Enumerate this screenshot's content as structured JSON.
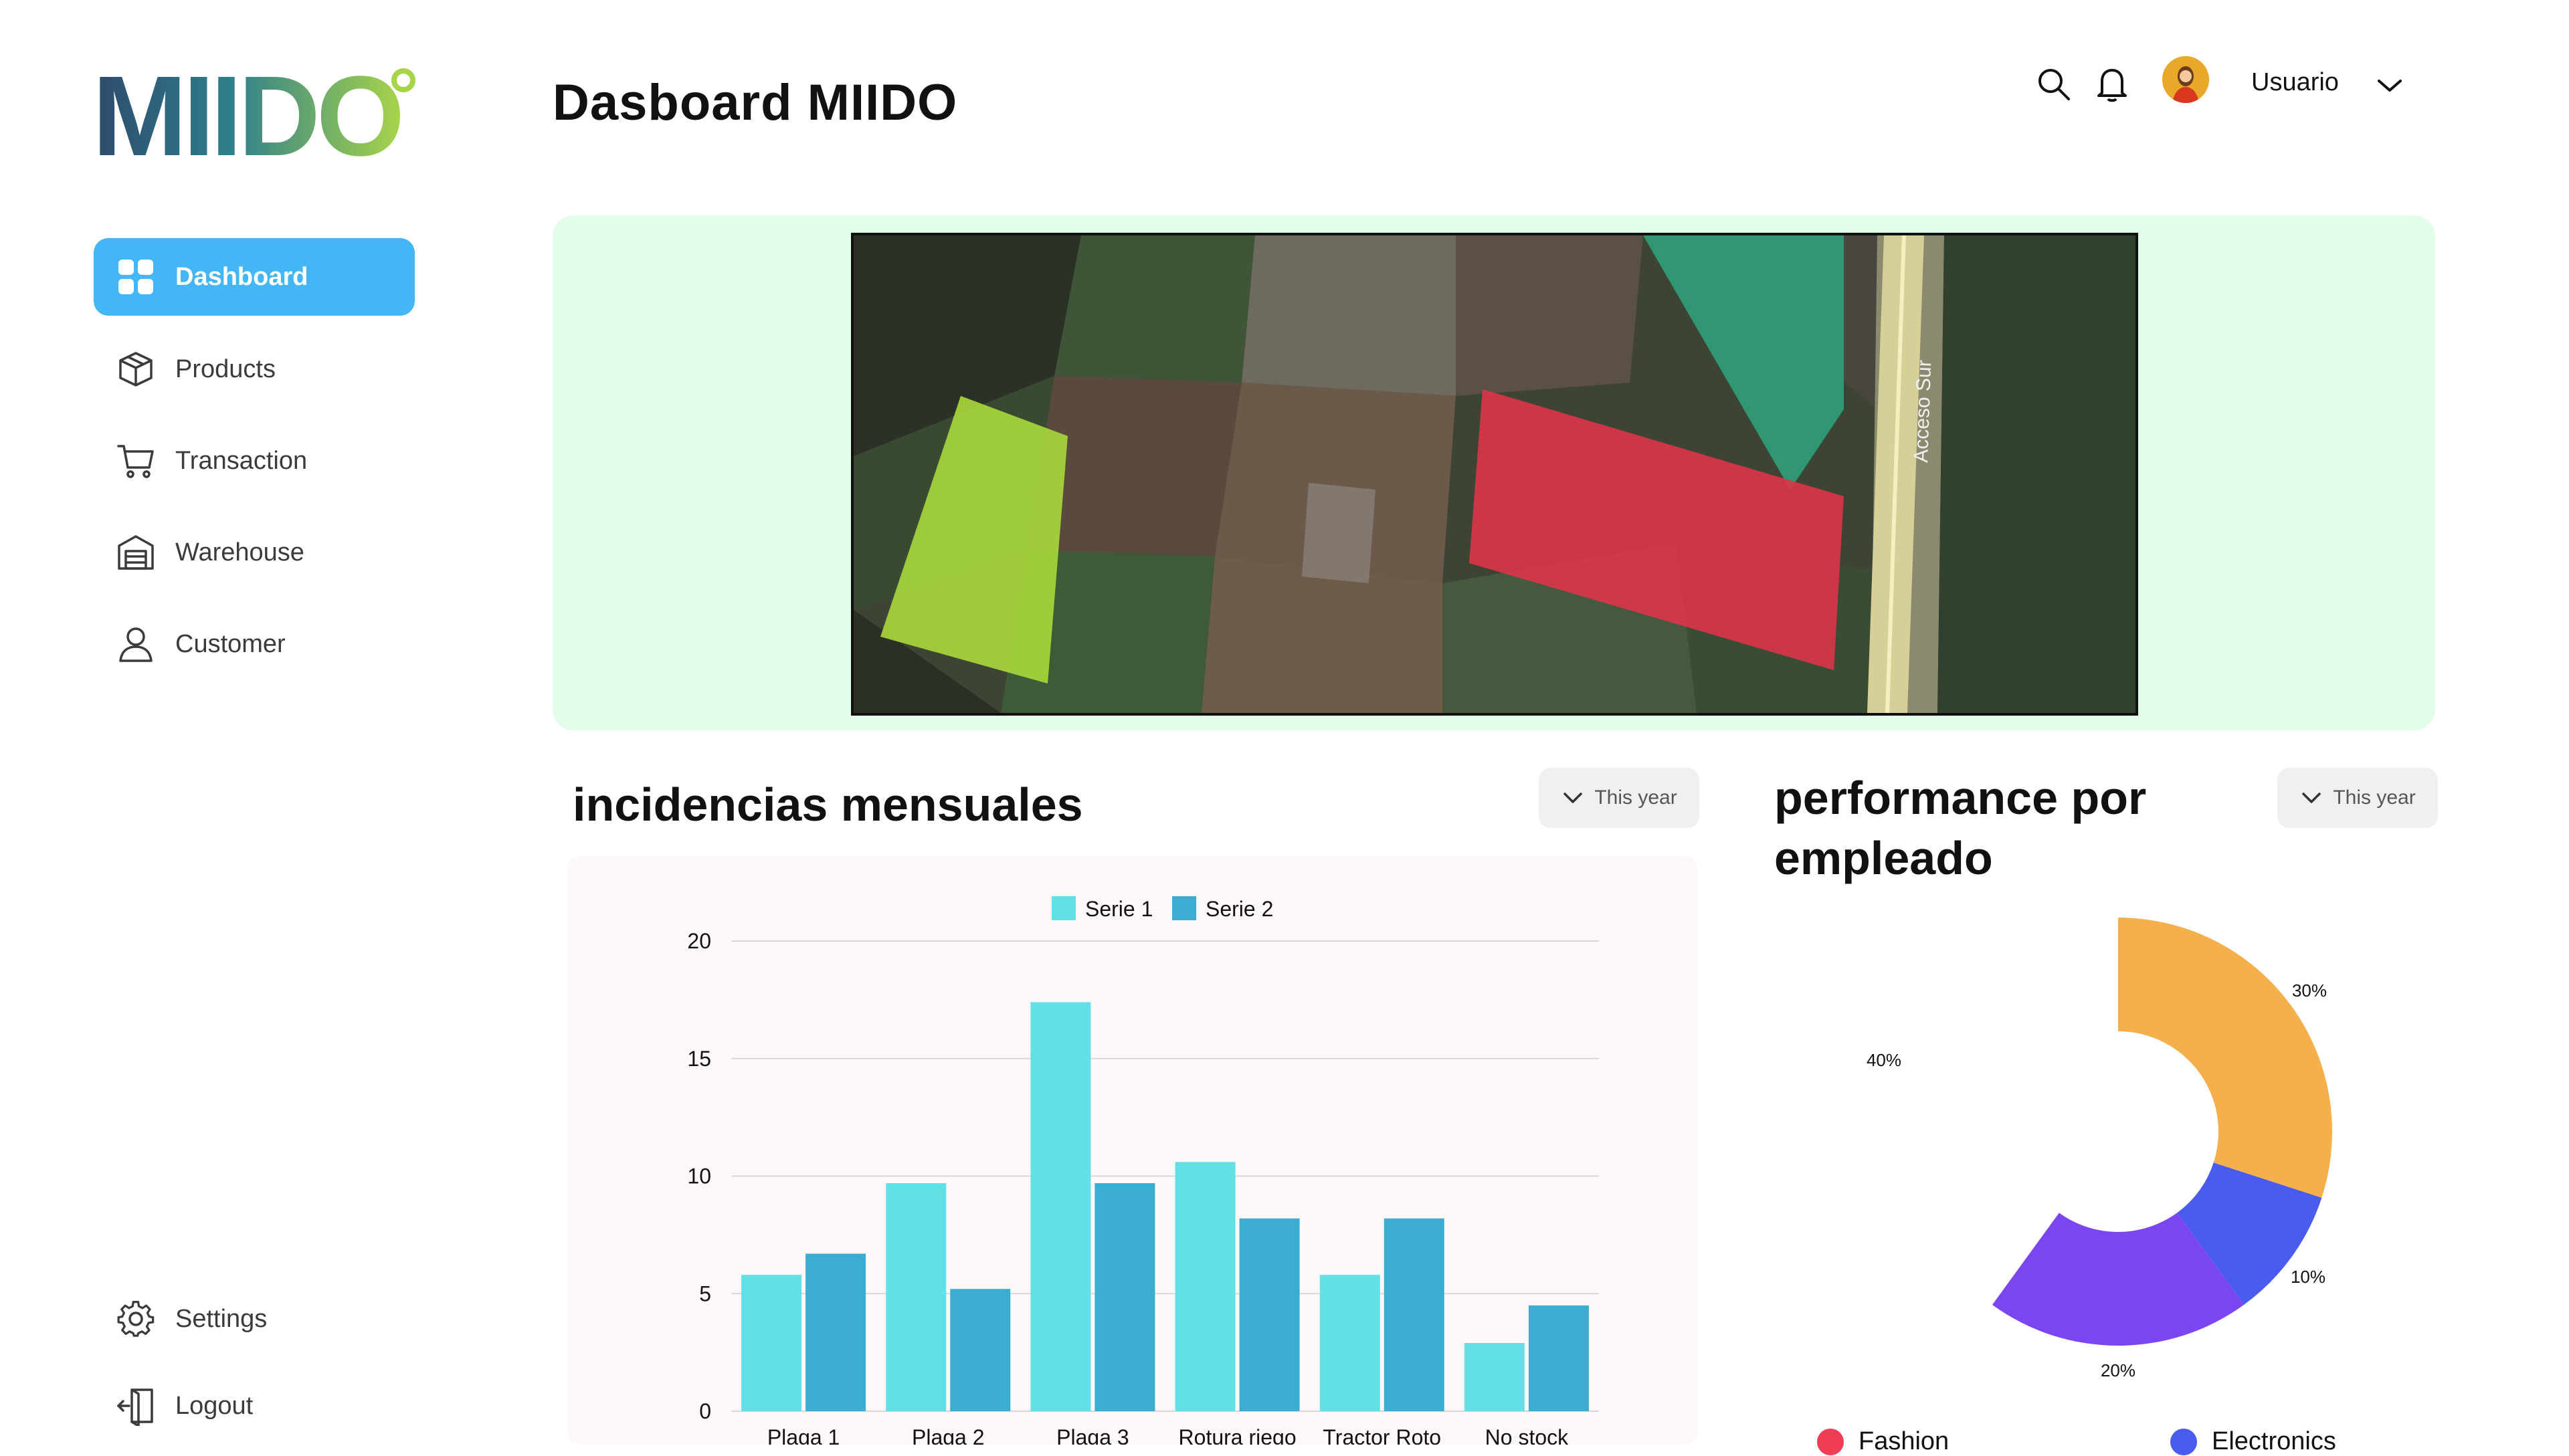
{
  "sidebar": {
    "logo_text": "MIIDO",
    "items": [
      {
        "label": "Dashboard",
        "icon": "dashboard-grid-icon",
        "active": true
      },
      {
        "label": "Products",
        "icon": "box-icon"
      },
      {
        "label": "Transaction",
        "icon": "cart-icon"
      },
      {
        "label": "Warehouse",
        "icon": "warehouse-icon"
      },
      {
        "label": "Customer",
        "icon": "user-icon"
      }
    ],
    "bottom": [
      {
        "label": "Settings",
        "icon": "gear-icon"
      },
      {
        "label": "Logout",
        "icon": "logout-icon"
      }
    ]
  },
  "header": {
    "title": "Dasboard MIIDO",
    "user_name": "Usuario",
    "icons": [
      "search-icon",
      "bell-icon",
      "avatar",
      "chevron-down-icon"
    ]
  },
  "map": {
    "road_label": "Acceso Sur",
    "colors": {
      "card_bg": "#e2fde9",
      "field_green": "#a7d63a",
      "field_teal": "#2fa07a",
      "field_red": "#e0344a"
    }
  },
  "incidents": {
    "title": "incidencias mensuales",
    "filter": "This year"
  },
  "performance": {
    "title_line1": "performance por",
    "title_line2": "empleado",
    "filter": "This year",
    "legend": [
      {
        "label": "Fashion",
        "color": "#f03c55"
      },
      {
        "label": "Electronics",
        "color": "#4a5cf0"
      }
    ]
  },
  "chart_data": [
    {
      "type": "bar",
      "categories": [
        "Plaga 1",
        "Plaga 2",
        "Plaga 3",
        "Rotura riego",
        "Tractor Roto",
        "No stock"
      ],
      "series": [
        {
          "name": "Serie 1",
          "color": "#62e0e6",
          "values": [
            5.8,
            9.7,
            17.4,
            10.6,
            5.8,
            2.9
          ]
        },
        {
          "name": "Serie 2",
          "color": "#3badd0",
          "values": [
            6.7,
            5.2,
            9.7,
            8.2,
            8.2,
            4.5
          ]
        }
      ],
      "yticks": [
        0,
        5,
        10,
        15,
        20
      ],
      "ylim": [
        0,
        20
      ],
      "legend_position": "top-center",
      "grid": true
    },
    {
      "type": "pie",
      "donut": true,
      "slices": [
        {
          "label": "30%",
          "value": 30,
          "color": "#f5b04c"
        },
        {
          "label": "10%",
          "value": 10,
          "color": "#4a5cf0"
        },
        {
          "label": "20%",
          "value": 20,
          "color": "#7c45f2"
        },
        {
          "label": "40%",
          "value": 40,
          "color": "#ffffff"
        }
      ]
    }
  ]
}
